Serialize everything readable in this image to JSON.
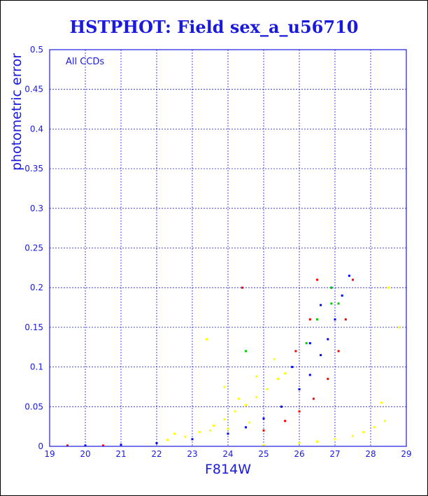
{
  "chart_data": {
    "type": "scatter",
    "title": "HSTPHOT: Field sex_a_u56710",
    "xlabel": "F814W",
    "ylabel": "photometric error",
    "annotation": "All CCDs",
    "xlim": [
      19,
      29
    ],
    "ylim": [
      0,
      0.5
    ],
    "xticks": [
      19,
      20,
      21,
      22,
      23,
      24,
      25,
      26,
      27,
      28,
      29
    ],
    "yticks": [
      0,
      0.05,
      0.1,
      0.15,
      0.2,
      0.25,
      0.3,
      0.35,
      0.4,
      0.45,
      0.5
    ],
    "ytick_labels": [
      "0",
      "0.05",
      "0.1",
      "0.15",
      "0.2",
      "0.25",
      "0.3",
      "0.35",
      "0.4",
      "0.45",
      "0.5"
    ],
    "grid": true,
    "series": [
      {
        "color": "#ffff00",
        "points": [
          [
            22.3,
            0.008
          ],
          [
            22.8,
            0.012
          ],
          [
            23.2,
            0.018
          ],
          [
            23.6,
            0.026
          ],
          [
            23.9,
            0.034
          ],
          [
            24.2,
            0.044
          ],
          [
            24.5,
            0.052
          ],
          [
            24.8,
            0.062
          ],
          [
            25.1,
            0.072
          ],
          [
            25.4,
            0.085
          ],
          [
            25.6,
            0.092
          ],
          [
            24.6,
            0.03
          ],
          [
            24.0,
            0.022
          ],
          [
            23.5,
            0.02
          ],
          [
            23.9,
            0.075
          ],
          [
            24.3,
            0.06
          ],
          [
            24.8,
            0.088
          ],
          [
            25.3,
            0.11
          ],
          [
            23.4,
            0.135
          ],
          [
            22.5,
            0.016
          ],
          [
            25.0,
            0.0015
          ],
          [
            26.0,
            0.004
          ],
          [
            26.5,
            0.006
          ],
          [
            27.0,
            0.009
          ],
          [
            27.5,
            0.013
          ],
          [
            27.8,
            0.018
          ],
          [
            28.1,
            0.024
          ],
          [
            28.4,
            0.032
          ],
          [
            28.3,
            0.055
          ],
          [
            28.8,
            0.15
          ],
          [
            28.5,
            0.2
          ]
        ]
      },
      {
        "color": "#0000ff",
        "points": [
          [
            20.0,
            0.001
          ],
          [
            21.0,
            0.002
          ],
          [
            22.0,
            0.004
          ],
          [
            23.0,
            0.009
          ],
          [
            24.0,
            0.016
          ],
          [
            24.5,
            0.024
          ],
          [
            25.0,
            0.035
          ],
          [
            25.5,
            0.05
          ],
          [
            26.0,
            0.072
          ],
          [
            26.3,
            0.09
          ],
          [
            26.6,
            0.115
          ],
          [
            26.8,
            0.135
          ],
          [
            27.0,
            0.16
          ],
          [
            27.2,
            0.19
          ],
          [
            27.4,
            0.215
          ],
          [
            26.3,
            0.13
          ],
          [
            26.9,
            0.2
          ],
          [
            25.8,
            0.1
          ],
          [
            26.6,
            0.178
          ]
        ]
      },
      {
        "color": "#ff0000",
        "points": [
          [
            19.5,
            0.001
          ],
          [
            20.5,
            0.001
          ],
          [
            25.0,
            0.02
          ],
          [
            25.6,
            0.032
          ],
          [
            26.0,
            0.044
          ],
          [
            26.4,
            0.06
          ],
          [
            26.8,
            0.085
          ],
          [
            27.1,
            0.12
          ],
          [
            27.3,
            0.16
          ],
          [
            27.5,
            0.21
          ],
          [
            26.5,
            0.21
          ],
          [
            26.3,
            0.16
          ],
          [
            25.9,
            0.12
          ],
          [
            24.4,
            0.2
          ]
        ]
      },
      {
        "color": "#00cc00",
        "points": [
          [
            26.5,
            0.16
          ],
          [
            26.9,
            0.18
          ],
          [
            27.1,
            0.18
          ],
          [
            24.5,
            0.12
          ],
          [
            26.2,
            0.13
          ],
          [
            26.9,
            0.2
          ]
        ]
      }
    ]
  }
}
